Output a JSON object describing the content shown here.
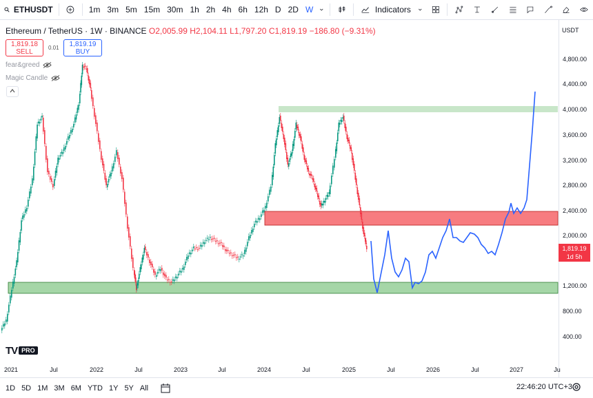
{
  "topbar": {
    "symbol": "ETHUSDT",
    "intervals": [
      "1m",
      "3m",
      "5m",
      "15m",
      "30m",
      "1h",
      "2h",
      "4h",
      "6h",
      "12h",
      "D",
      "2D",
      "W"
    ],
    "active_interval": "W",
    "indicators_label": "Indicators"
  },
  "legend": {
    "title": "Ethereum / TetherUS · 1W · BINANCE",
    "open": "O2,005.99",
    "high": "H2,104.11",
    "low": "L1,797.20",
    "close": "C1,819.19",
    "change": "−186.80 (−9.31%)",
    "sell_price": "1,819.18",
    "sell_label": "SELL",
    "buy_price": "1,819.19",
    "buy_label": "BUY",
    "spread": "0.01",
    "indicator1": "fear&greed",
    "indicator2": "Magic Candle"
  },
  "price_axis": {
    "currency": "USDT",
    "ticks": [
      "4,800.00",
      "4,400.00",
      "4,000.00",
      "3,600.00",
      "3,200.00",
      "2,800.00",
      "2,400.00",
      "2,000.00",
      "1,200.00",
      "800.00",
      "400.00"
    ],
    "last_price": "1,819.19",
    "countdown": "1d 5h"
  },
  "time_axis": {
    "ticks": [
      "2021",
      "Jul",
      "2022",
      "Jul",
      "2023",
      "Jul",
      "2024",
      "Jul",
      "2025",
      "Jul",
      "2026",
      "Jul",
      "2027",
      "Ju"
    ]
  },
  "bottombar": {
    "ranges": [
      "1D",
      "5D",
      "1M",
      "3M",
      "6M",
      "YTD",
      "1Y",
      "5Y",
      "All"
    ],
    "clock": "22:46:20 UTC+3"
  },
  "logo": {
    "text": "TV",
    "badge": "PRO"
  },
  "colors": {
    "up": "#089981",
    "down": "#f23645",
    "accent": "#2962ff",
    "zone_green": "#a5d6a7",
    "zone_red": "#f77c80"
  }
}
